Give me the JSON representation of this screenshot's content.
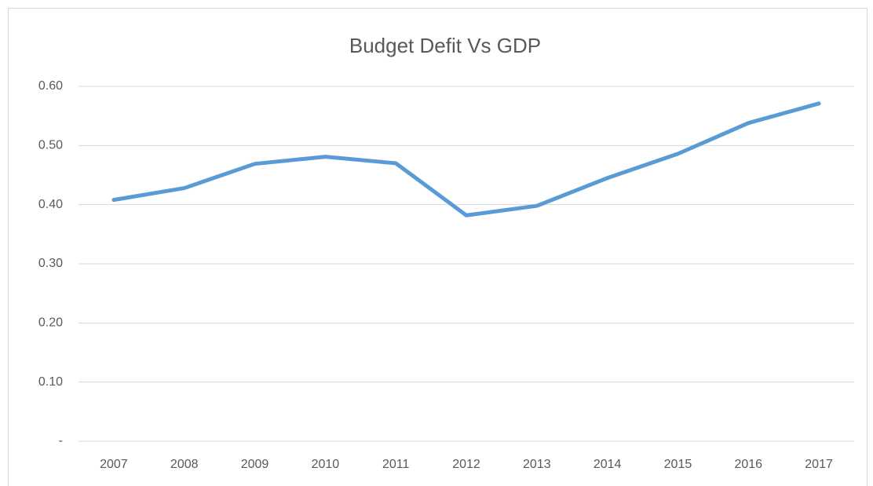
{
  "chart_data": {
    "type": "line",
    "title": "Budget Defit Vs GDP",
    "categories": [
      "2007",
      "2008",
      "2009",
      "2010",
      "2011",
      "2012",
      "2013",
      "2014",
      "2015",
      "2016",
      "2017"
    ],
    "values": [
      0.408,
      0.428,
      0.469,
      0.481,
      0.47,
      0.382,
      0.398,
      0.445,
      0.486,
      0.538,
      0.571
    ],
    "color": "#5b9bd5",
    "ylim": [
      0,
      0.6
    ],
    "yticks": [
      {
        "value": 0,
        "label": "-"
      },
      {
        "value": 0.1,
        "label": "0.10"
      },
      {
        "value": 0.2,
        "label": "0.20"
      },
      {
        "value": 0.3,
        "label": "0.30"
      },
      {
        "value": 0.4,
        "label": "0.40"
      },
      {
        "value": 0.5,
        "label": "0.50"
      },
      {
        "value": 0.6,
        "label": "0.60"
      }
    ],
    "grid": true
  }
}
